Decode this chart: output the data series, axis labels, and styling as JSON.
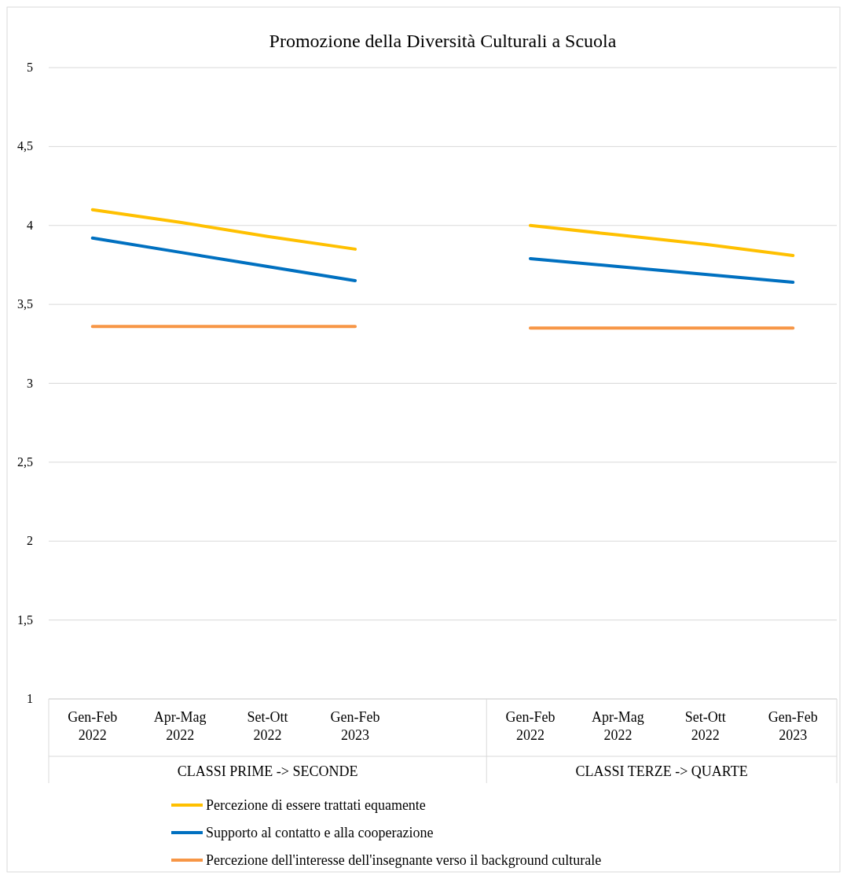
{
  "chart_data": {
    "type": "line",
    "title": "Promozione della Diversità Culturali a Scuola",
    "categories": [
      "Gen-Feb 2022",
      "Apr-Mag 2022",
      "Set-Ott 2022",
      "Gen-Feb 2023",
      null,
      "Gen-Feb 2022",
      "Apr-Mag 2022",
      "Set-Ott 2022",
      "Gen-Feb 2023"
    ],
    "series": [
      {
        "name": "Percezione di essere trattati equamente",
        "color": "#ffc000",
        "values": [
          4.1,
          4.02,
          3.93,
          3.85,
          null,
          4.0,
          3.94,
          3.88,
          3.81
        ]
      },
      {
        "name": "Supporto al contatto e alla cooperazione",
        "color": "#0070c0",
        "values": [
          3.92,
          3.83,
          3.74,
          3.65,
          null,
          3.79,
          3.74,
          3.69,
          3.64
        ]
      },
      {
        "name": "Percezione dell'interesse dell'insegnante verso il background culturale",
        "color": "#f79646",
        "values": [
          3.36,
          3.36,
          3.36,
          3.36,
          null,
          3.35,
          3.35,
          3.35,
          3.35
        ]
      }
    ],
    "annotations": [
      "CLASSI PRIME -> SECONDE",
      "CLASSI TERZE -> QUARTE"
    ],
    "ylim": [
      1,
      5
    ],
    "yticks": [
      1,
      {
        "value": 1.5,
        "label": "1,5"
      },
      2,
      {
        "value": 2.5,
        "label": "2,5"
      },
      3,
      {
        "value": 3.5,
        "label": "3,5"
      },
      4,
      {
        "value": 4.5,
        "label": "4,5"
      },
      5
    ],
    "grid": "y",
    "legend": "bottom",
    "marker": "none",
    "line_style": "solid"
  }
}
